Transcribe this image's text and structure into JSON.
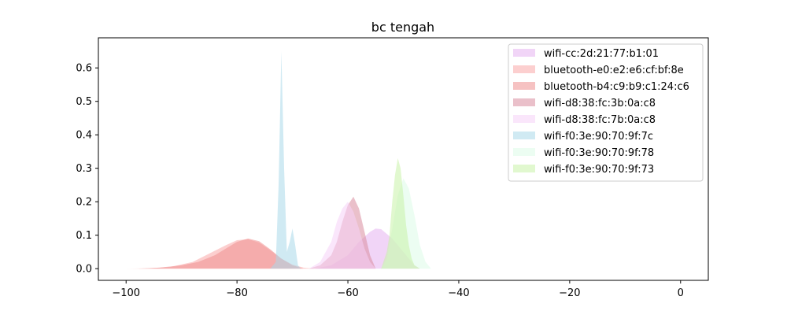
{
  "chart_data": {
    "type": "area",
    "title": "bc tengah",
    "xlabel": "",
    "ylabel": "",
    "xlim": [
      -105,
      5
    ],
    "ylim": [
      -0.035,
      0.69
    ],
    "xticks": [
      -100,
      -80,
      -60,
      -40,
      -20,
      0
    ],
    "xtick_labels": [
      "−100",
      "−80",
      "−60",
      "−40",
      "−20",
      "0"
    ],
    "yticks": [
      0.0,
      0.1,
      0.2,
      0.3,
      0.4,
      0.5,
      0.6
    ],
    "ytick_labels": [
      "0.0",
      "0.1",
      "0.2",
      "0.3",
      "0.4",
      "0.5",
      "0.6"
    ],
    "grid": false,
    "legend_position": "top-right",
    "series": [
      {
        "name": "wifi-cc:2d:21:77:b1:01",
        "color": "#e5b3f0",
        "x": [
          -66,
          -63,
          -60,
          -58,
          -56,
          -55,
          -54,
          -52,
          -50,
          -48,
          -47
        ],
        "y": [
          0,
          0.01,
          0.04,
          0.08,
          0.11,
          0.12,
          0.118,
          0.09,
          0.05,
          0.01,
          0
        ]
      },
      {
        "name": "bluetooth-e0:e2:e6:cf:bf:8e",
        "color": "#f9a8a8",
        "x": [
          -100,
          -96,
          -92,
          -88,
          -85,
          -82,
          -80,
          -78,
          -76,
          -74,
          -72,
          -70,
          -68,
          -66
        ],
        "y": [
          0,
          0.001,
          0.005,
          0.02,
          0.045,
          0.07,
          0.085,
          0.088,
          0.078,
          0.055,
          0.03,
          0.012,
          0.003,
          0
        ]
      },
      {
        "name": "bluetooth-b4:c9:b9:c1:24:c6",
        "color": "#ee9090",
        "x": [
          -98,
          -94,
          -90,
          -87,
          -84,
          -82,
          -80,
          -78,
          -76,
          -74,
          -72,
          -70,
          -68
        ],
        "y": [
          0,
          0.003,
          0.01,
          0.02,
          0.04,
          0.06,
          0.08,
          0.09,
          0.082,
          0.058,
          0.03,
          0.01,
          0
        ]
      },
      {
        "name": "wifi-d8:38:fc:3b:0a:c8",
        "color": "#d88c9e",
        "x": [
          -67,
          -65,
          -63,
          -62,
          -61,
          -60,
          -59,
          -58,
          -57,
          -56,
          -55
        ],
        "y": [
          0,
          0.01,
          0.04,
          0.08,
          0.14,
          0.19,
          0.215,
          0.18,
          0.11,
          0.04,
          0
        ]
      },
      {
        "name": "wifi-d8:38:fc:7b:0a:c8",
        "color": "#f5d2f8",
        "x": [
          -67,
          -65,
          -63,
          -62,
          -61,
          -60,
          -59,
          -58,
          -57,
          -56,
          -55
        ],
        "y": [
          0,
          0.02,
          0.08,
          0.14,
          0.18,
          0.2,
          0.17,
          0.12,
          0.06,
          0.02,
          0
        ]
      },
      {
        "name": "wifi-f0:3e:90:70:9f:7c",
        "color": "#a9d8e9",
        "x": [
          -74,
          -73,
          -72.5,
          -72,
          -71.5,
          -71,
          -70.5,
          -70,
          -69.5,
          -69,
          -68.5
        ],
        "y": [
          0,
          0.02,
          0.25,
          0.65,
          0.3,
          0.05,
          0.08,
          0.12,
          0.07,
          0.01,
          0
        ]
      },
      {
        "name": "wifi-f0:3e:90:70:9f:78",
        "color": "#dcfbe8",
        "x": [
          -54,
          -53,
          -52,
          -51,
          -50,
          -49,
          -48,
          -47,
          -46,
          -45
        ],
        "y": [
          0,
          0.03,
          0.12,
          0.22,
          0.27,
          0.24,
          0.16,
          0.07,
          0.02,
          0
        ]
      },
      {
        "name": "wifi-f0:3e:90:70:9f:73",
        "color": "#c8f2a8",
        "x": [
          -54,
          -53,
          -52.5,
          -52,
          -51.5,
          -51,
          -50.5,
          -50,
          -49.5,
          -49,
          -48.5,
          -48,
          -47
        ],
        "y": [
          0,
          0.05,
          0.1,
          0.2,
          0.28,
          0.33,
          0.3,
          0.22,
          0.13,
          0.07,
          0.03,
          0.01,
          0
        ]
      }
    ]
  }
}
